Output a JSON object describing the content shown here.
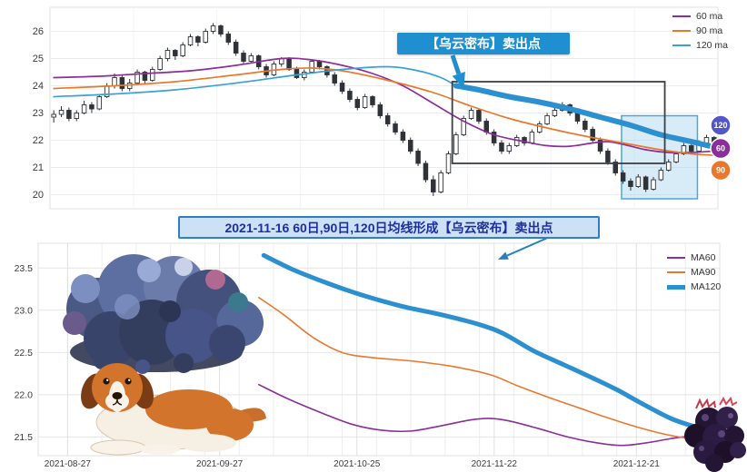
{
  "banner": {
    "text": "2021-11-16 60日,90日,120日均线形成【乌云密布】卖出点"
  },
  "chart_data": [
    {
      "type": "candlestick",
      "ylim": [
        19.55,
        26.75
      ],
      "yticks": [
        {
          "label": "26",
          "v": 26
        },
        {
          "label": "25",
          "v": 25
        },
        {
          "label": "24",
          "v": 24
        },
        {
          "label": "23",
          "v": 23
        },
        {
          "label": "22",
          "v": 22
        },
        {
          "label": "21",
          "v": 21
        },
        {
          "label": "20",
          "v": 20
        }
      ],
      "legend": [
        {
          "label": "60 ma",
          "color": "#8b2d9b",
          "thick": false
        },
        {
          "label": "90 ma",
          "color": "#e8782e",
          "thick": false
        },
        {
          "label": "120 ma",
          "color": "#3aa0d8",
          "thick": false
        }
      ],
      "candles_ohlc": [
        [
          22.85,
          23.1,
          22.65,
          22.95
        ],
        [
          22.95,
          23.25,
          22.85,
          23.1
        ],
        [
          23.1,
          23.2,
          22.7,
          22.8
        ],
        [
          22.8,
          23.1,
          22.7,
          23.0
        ],
        [
          23.0,
          23.45,
          22.95,
          23.3
        ],
        [
          23.3,
          23.4,
          23.0,
          23.15
        ],
        [
          23.15,
          23.7,
          23.1,
          23.6
        ],
        [
          23.6,
          24.1,
          23.55,
          24.0
        ],
        [
          24.0,
          24.45,
          23.9,
          24.3
        ],
        [
          24.3,
          24.4,
          23.8,
          23.9
        ],
        [
          23.9,
          24.25,
          23.8,
          24.1
        ],
        [
          24.1,
          24.6,
          24.05,
          24.5
        ],
        [
          24.5,
          24.55,
          24.05,
          24.2
        ],
        [
          24.2,
          24.7,
          24.15,
          24.6
        ],
        [
          24.6,
          25.1,
          24.55,
          25.0
        ],
        [
          25.0,
          25.4,
          24.9,
          25.3
        ],
        [
          25.3,
          25.35,
          24.95,
          25.1
        ],
        [
          25.1,
          25.6,
          25.05,
          25.5
        ],
        [
          25.5,
          25.9,
          25.45,
          25.8
        ],
        [
          25.8,
          25.85,
          25.45,
          25.6
        ],
        [
          25.6,
          26.1,
          25.55,
          26.0
        ],
        [
          26.0,
          26.3,
          25.9,
          26.2
        ],
        [
          26.2,
          26.25,
          25.8,
          25.9
        ],
        [
          25.9,
          26.0,
          25.5,
          25.6
        ],
        [
          25.6,
          25.7,
          25.1,
          25.2
        ],
        [
          25.2,
          25.3,
          24.8,
          24.9
        ],
        [
          24.9,
          25.2,
          24.85,
          25.1
        ],
        [
          25.1,
          25.15,
          24.6,
          24.7
        ],
        [
          24.7,
          24.8,
          24.3,
          24.4
        ],
        [
          24.4,
          24.9,
          24.35,
          24.8
        ],
        [
          24.8,
          25.05,
          24.7,
          25.0
        ],
        [
          25.0,
          25.05,
          24.55,
          24.6
        ],
        [
          24.6,
          24.7,
          24.25,
          24.3
        ],
        [
          24.3,
          24.6,
          24.2,
          24.5
        ],
        [
          24.5,
          24.95,
          24.45,
          24.9
        ],
        [
          24.9,
          24.95,
          24.6,
          24.7
        ],
        [
          24.7,
          24.75,
          24.3,
          24.4
        ],
        [
          24.4,
          24.5,
          24.0,
          24.1
        ],
        [
          24.1,
          24.2,
          23.7,
          23.8
        ],
        [
          23.8,
          23.9,
          23.4,
          23.5
        ],
        [
          23.5,
          23.6,
          23.1,
          23.2
        ],
        [
          23.2,
          23.7,
          23.15,
          23.6
        ],
        [
          23.6,
          23.65,
          23.2,
          23.3
        ],
        [
          23.3,
          23.4,
          22.8,
          22.9
        ],
        [
          22.9,
          23.0,
          22.5,
          22.6
        ],
        [
          22.6,
          22.7,
          22.2,
          22.3
        ],
        [
          22.3,
          22.4,
          21.9,
          22.0
        ],
        [
          22.0,
          22.1,
          21.5,
          21.6
        ],
        [
          21.6,
          21.7,
          21.05,
          21.15
        ],
        [
          21.15,
          21.25,
          20.45,
          20.55
        ],
        [
          20.55,
          20.7,
          19.95,
          20.1
        ],
        [
          20.1,
          20.9,
          20.05,
          20.8
        ],
        [
          20.8,
          21.6,
          20.75,
          21.5
        ],
        [
          21.5,
          22.3,
          21.45,
          22.2
        ],
        [
          22.2,
          22.9,
          22.15,
          22.8
        ],
        [
          22.8,
          23.2,
          22.75,
          23.1
        ],
        [
          23.1,
          23.15,
          22.6,
          22.7
        ],
        [
          22.7,
          22.8,
          22.2,
          22.3
        ],
        [
          22.3,
          22.4,
          21.8,
          21.9
        ],
        [
          21.9,
          22.0,
          21.5,
          21.6
        ],
        [
          21.6,
          21.9,
          21.5,
          21.8
        ],
        [
          21.8,
          22.2,
          21.75,
          22.1
        ],
        [
          22.1,
          22.15,
          21.8,
          21.9
        ],
        [
          21.9,
          22.4,
          21.85,
          22.3
        ],
        [
          22.3,
          22.7,
          22.25,
          22.6
        ],
        [
          22.6,
          23.0,
          22.55,
          22.9
        ],
        [
          22.9,
          23.2,
          22.85,
          23.1
        ],
        [
          23.1,
          23.4,
          23.05,
          23.3
        ],
        [
          23.3,
          23.35,
          22.9,
          23.0
        ],
        [
          23.0,
          23.1,
          22.6,
          22.7
        ],
        [
          22.7,
          22.8,
          22.3,
          22.4
        ],
        [
          22.4,
          22.5,
          21.9,
          22.0
        ],
        [
          22.0,
          22.1,
          21.5,
          21.6
        ],
        [
          21.6,
          21.7,
          21.1,
          21.2
        ],
        [
          21.2,
          21.3,
          20.7,
          20.8
        ],
        [
          20.8,
          20.9,
          20.4,
          20.5
        ],
        [
          20.5,
          20.6,
          20.15,
          20.3
        ],
        [
          20.3,
          20.75,
          20.25,
          20.65
        ],
        [
          20.65,
          20.7,
          20.1,
          20.2
        ],
        [
          20.2,
          20.65,
          20.15,
          20.55
        ],
        [
          20.55,
          21.0,
          20.5,
          20.9
        ],
        [
          20.9,
          21.3,
          20.85,
          21.2
        ],
        [
          21.2,
          21.6,
          21.15,
          21.5
        ],
        [
          21.5,
          21.9,
          21.45,
          21.8
        ],
        [
          21.8,
          21.85,
          21.5,
          21.6
        ],
        [
          21.6,
          22.0,
          21.55,
          21.9
        ],
        [
          21.9,
          22.2,
          21.85,
          22.1
        ],
        [
          22.1,
          22.15,
          21.75,
          21.9
        ]
      ],
      "ma_series": [
        {
          "name": "60 ma",
          "color": "#8b2d9b",
          "width": 1.7,
          "points": [
            [
              0,
              24.3
            ],
            [
              6,
              24.35
            ],
            [
              12,
              24.45
            ],
            [
              18,
              24.55
            ],
            [
              24,
              24.75
            ],
            [
              30,
              25.0
            ],
            [
              34,
              24.95
            ],
            [
              38,
              24.75
            ],
            [
              42,
              24.45
            ],
            [
              46,
              24.0
            ],
            [
              50,
              23.35
            ],
            [
              54,
              22.7
            ],
            [
              58,
              22.2
            ],
            [
              62,
              21.95
            ],
            [
              65,
              21.8
            ],
            [
              68,
              21.78
            ],
            [
              71,
              21.9
            ],
            [
              73,
              21.95
            ],
            [
              75,
              21.85
            ],
            [
              78,
              21.65
            ],
            [
              81,
              21.55
            ],
            [
              84,
              21.55
            ],
            [
              87,
              21.6
            ]
          ]
        },
        {
          "name": "90 ma",
          "color": "#e8782e",
          "width": 1.7,
          "points": [
            [
              0,
              23.9
            ],
            [
              8,
              24.0
            ],
            [
              16,
              24.15
            ],
            [
              24,
              24.4
            ],
            [
              30,
              24.6
            ],
            [
              34,
              24.65
            ],
            [
              38,
              24.55
            ],
            [
              44,
              24.2
            ],
            [
              50,
              23.75
            ],
            [
              55,
              23.25
            ],
            [
              60,
              22.8
            ],
            [
              65,
              22.45
            ],
            [
              70,
              22.15
            ],
            [
              75,
              21.9
            ],
            [
              80,
              21.65
            ],
            [
              84,
              21.5
            ],
            [
              87,
              21.45
            ]
          ]
        },
        {
          "name": "120 ma",
          "color": "#3aa0d8",
          "width": 1.7,
          "points": [
            [
              0,
              23.6
            ],
            [
              8,
              23.7
            ],
            [
              16,
              23.85
            ],
            [
              24,
              24.1
            ],
            [
              32,
              24.4
            ],
            [
              38,
              24.6
            ],
            [
              44,
              24.7
            ],
            [
              48,
              24.55
            ],
            [
              51,
              24.3
            ],
            [
              53,
              24.0
            ]
          ]
        },
        {
          "name": "120 ma dark-cloud segment",
          "color": "#2b8fd0",
          "width": 6,
          "points": [
            [
              53,
              24.0
            ],
            [
              56,
              23.85
            ],
            [
              60,
              23.6
            ],
            [
              64,
              23.4
            ],
            [
              68,
              23.15
            ],
            [
              72,
              22.85
            ],
            [
              76,
              22.55
            ],
            [
              80,
              22.2
            ],
            [
              84,
              21.95
            ],
            [
              87,
              21.75
            ]
          ]
        }
      ],
      "annotation": {
        "text": "【乌云密布】卖出点",
        "fill": "#1f8fd0",
        "text_color": "#ffffff",
        "target": [
          54,
          23.9
        ]
      },
      "highlight_box": {
        "x0": 52.5,
        "x1": 80.5,
        "y0": 21.15,
        "y1": 24.15,
        "stroke": "#3a3f44"
      },
      "shaded_region": {
        "x0": 74.8,
        "x1": 84.8,
        "y0": 19.85,
        "y1": 22.9,
        "fill": "#a8d4ee",
        "stroke": "#49a8dd"
      },
      "badges": [
        {
          "label": "120",
          "color": "#5356c8",
          "value": 22.55
        },
        {
          "label": "60",
          "color": "#8b2d9b",
          "value": 21.7
        },
        {
          "label": "90",
          "color": "#e8782e",
          "value": 20.9
        }
      ]
    },
    {
      "type": "line",
      "ylim": [
        21.3,
        23.75
      ],
      "xlim": [
        -6,
        133
      ],
      "yticks": [
        {
          "label": "23.5",
          "v": 23.5
        },
        {
          "label": "23.0",
          "v": 23.0
        },
        {
          "label": "22.5",
          "v": 22.5
        },
        {
          "label": "22.0",
          "v": 22.0
        },
        {
          "label": "21.5",
          "v": 21.5
        }
      ],
      "xticks": [
        {
          "label": "2021-08-27",
          "v": 0
        },
        {
          "label": "2021-09-27",
          "v": 31
        },
        {
          "label": "2021-10-25",
          "v": 59
        },
        {
          "label": "2021-11-22",
          "v": 87
        },
        {
          "label": "2021-12-21",
          "v": 116
        }
      ],
      "legend": [
        {
          "label": "MA60",
          "color": "#8b2d9b",
          "thick": false
        },
        {
          "label": "MA90",
          "color": "#e8782e",
          "thick": false
        },
        {
          "label": "MA120",
          "color": "#2b8fd0",
          "thick": true
        }
      ],
      "series": [
        {
          "name": "MA60",
          "color": "#8b2d9b",
          "width": 1.6,
          "points": [
            [
              39,
              22.12
            ],
            [
              45,
              21.95
            ],
            [
              52,
              21.78
            ],
            [
              58,
              21.65
            ],
            [
              64,
              21.58
            ],
            [
              70,
              21.57
            ],
            [
              76,
              21.63
            ],
            [
              82,
              21.7
            ],
            [
              86,
              21.72
            ],
            [
              90,
              21.69
            ],
            [
              96,
              21.6
            ],
            [
              102,
              21.5
            ],
            [
              108,
              21.43
            ],
            [
              113,
              21.4
            ],
            [
              118,
              21.43
            ],
            [
              123,
              21.48
            ],
            [
              128,
              21.52
            ]
          ]
        },
        {
          "name": "MA90",
          "color": "#e8782e",
          "width": 1.6,
          "points": [
            [
              39,
              23.15
            ],
            [
              44,
              22.95
            ],
            [
              50,
              22.68
            ],
            [
              56,
              22.5
            ],
            [
              62,
              22.44
            ],
            [
              70,
              22.4
            ],
            [
              78,
              22.34
            ],
            [
              86,
              22.24
            ],
            [
              92,
              22.1
            ],
            [
              98,
              21.97
            ],
            [
              104,
              21.85
            ],
            [
              110,
              21.73
            ],
            [
              116,
              21.62
            ],
            [
              122,
              21.53
            ],
            [
              128,
              21.47
            ]
          ]
        },
        {
          "name": "MA120",
          "color": "#2b8fd0",
          "width": 5,
          "points": [
            [
              40,
              23.65
            ],
            [
              46,
              23.48
            ],
            [
              53,
              23.32
            ],
            [
              60,
              23.18
            ],
            [
              68,
              23.05
            ],
            [
              76,
              22.95
            ],
            [
              84,
              22.83
            ],
            [
              89,
              22.72
            ],
            [
              95,
              22.52
            ],
            [
              101,
              22.36
            ],
            [
              107,
              22.2
            ],
            [
              112,
              22.06
            ],
            [
              117,
              21.9
            ],
            [
              123,
              21.72
            ],
            [
              128,
              21.62
            ]
          ]
        }
      ]
    }
  ],
  "illustrations": [
    {
      "name": "storm-cloud-illustration"
    },
    {
      "name": "dog-illustration"
    },
    {
      "name": "berry-cloud-illustration"
    }
  ]
}
